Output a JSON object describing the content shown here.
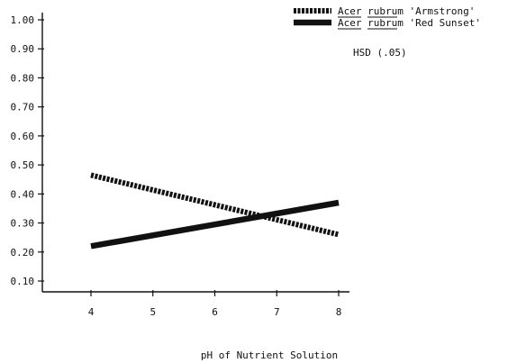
{
  "chart_data": {
    "type": "line",
    "title": "",
    "xlabel": "pH of Nutrient Solution",
    "ylabel": "",
    "x": [
      4,
      8
    ],
    "xticks": [
      "4",
      "5",
      "6",
      "7",
      "8"
    ],
    "xtick_values": [
      4,
      5,
      6,
      7,
      8
    ],
    "yticks": [
      "0.10",
      "0.20",
      "0.30",
      "0.40",
      "0.50",
      "0.60",
      "0.70",
      "0.80",
      "0.90",
      "1.00"
    ],
    "ytick_values": [
      0.1,
      0.2,
      0.3,
      0.4,
      0.5,
      0.6,
      0.7,
      0.8,
      0.9,
      1.0
    ],
    "xlim": [
      3.3,
      8.3
    ],
    "ylim": [
      0.05,
      1.0
    ],
    "grid": false,
    "legend_position": "top-right",
    "series": [
      {
        "name": "Acer rubrum 'Armstrong'",
        "name_genus": "Acer",
        "name_species": "rubrum",
        "name_cultivar": "'Armstrong'",
        "style": "dashed",
        "color": "#111111",
        "values": [
          0.465,
          0.26
        ]
      },
      {
        "name": "Acer rubrum 'Red Sunset'",
        "name_genus": "Acer",
        "name_species": "rubrum",
        "name_cultivar": "'Red Sunset'",
        "style": "solid",
        "color": "#111111",
        "values": [
          0.22,
          0.37
        ]
      }
    ],
    "annotations": [
      {
        "text": "HSD (.05)"
      }
    ]
  }
}
